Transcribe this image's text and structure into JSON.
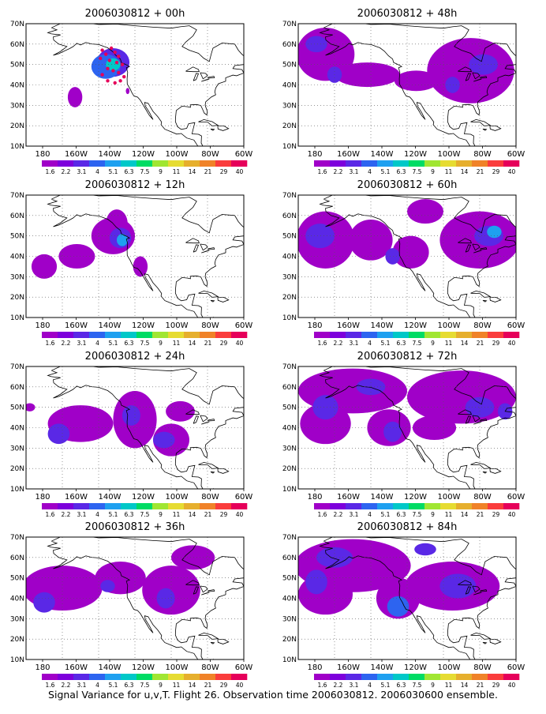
{
  "figure": {
    "caption": "Signal Variance for u,v,T. Flight 26. Observation time 2006030812. 2006030600 ensemble."
  },
  "shared": {
    "x_ticks": [
      "180",
      "160W",
      "140W",
      "120W",
      "100W",
      "80W",
      "60W"
    ],
    "y_ticks": [
      "10N",
      "20N",
      "30N",
      "40N",
      "50N",
      "60N",
      "70N"
    ],
    "lon_range": [
      -180,
      -60
    ],
    "lat_range": [
      10,
      70
    ],
    "colorbar_labels": [
      "1.6",
      "2.2",
      "3.1",
      "4",
      "5.1",
      "6.3",
      "7.5",
      "9",
      "11",
      "14",
      "21",
      "29",
      "40"
    ],
    "colorbar_colors": [
      "#a000c8",
      "#7d00dc",
      "#5a28e6",
      "#2d64f0",
      "#1ea0f0",
      "#00c8c8",
      "#00dc64",
      "#a0e632",
      "#e6dc32",
      "#e6af2d",
      "#f08228",
      "#fa3c3c",
      "#e6005a"
    ],
    "coastline_color": "#000000",
    "grid": "dotted"
  },
  "chart_data": [
    {
      "type": "heatmap",
      "title": "2006030812 + 00h",
      "regions": [
        {
          "lon": -132,
          "lat": 51,
          "rx": 9,
          "ry": 7,
          "level": 2
        },
        {
          "lon": -136,
          "lat": 49,
          "rx": 8,
          "ry": 6,
          "level": 3
        },
        {
          "lon": -132,
          "lat": 50,
          "rx": 4,
          "ry": 3,
          "level": 5
        },
        {
          "lon": -153,
          "lat": 34,
          "rx": 4,
          "ry": 5,
          "level": 0
        },
        {
          "lon": -124,
          "lat": 37,
          "rx": 1,
          "ry": 1.5,
          "level": 0
        }
      ],
      "obs_points": [
        [
          -138,
          57
        ],
        [
          -136,
          55
        ],
        [
          -133,
          58
        ],
        [
          -131,
          56
        ],
        [
          -129,
          54
        ],
        [
          -134,
          52
        ],
        [
          -130,
          51
        ],
        [
          -127,
          50
        ],
        [
          -135,
          48
        ],
        [
          -132,
          47
        ],
        [
          -129,
          46
        ],
        [
          -138,
          45
        ],
        [
          -135,
          42
        ],
        [
          -131,
          41
        ],
        [
          -128,
          42
        ],
        [
          -126,
          44
        ],
        [
          -139,
          53
        ]
      ],
      "obs_color": "#e6005a"
    },
    {
      "type": "heatmap",
      "title": "2006030812 + 48h",
      "regions": [
        {
          "lon": -165,
          "lat": 55,
          "rx": 16,
          "ry": 13,
          "level": 0
        },
        {
          "lon": -142,
          "lat": 45,
          "rx": 18,
          "ry": 6,
          "level": 0
        },
        {
          "lon": -115,
          "lat": 42,
          "rx": 12,
          "ry": 5,
          "level": 0
        },
        {
          "lon": -85,
          "lat": 47,
          "rx": 24,
          "ry": 16,
          "level": 0
        },
        {
          "lon": -170,
          "lat": 60,
          "rx": 6,
          "ry": 4,
          "level": 2
        },
        {
          "lon": -160,
          "lat": 45,
          "rx": 4,
          "ry": 4,
          "level": 2
        },
        {
          "lon": -78,
          "lat": 50,
          "rx": 8,
          "ry": 5,
          "level": 2
        },
        {
          "lon": -95,
          "lat": 40,
          "rx": 4,
          "ry": 4,
          "level": 2
        }
      ],
      "obs_points": [],
      "obs_color": "#e6005a"
    },
    {
      "type": "heatmap",
      "title": "2006030812 + 12h",
      "regions": [
        {
          "lon": -132,
          "lat": 50,
          "rx": 12,
          "ry": 9,
          "level": 0
        },
        {
          "lon": -130,
          "lat": 56,
          "rx": 6,
          "ry": 7,
          "level": 0
        },
        {
          "lon": -152,
          "lat": 40,
          "rx": 10,
          "ry": 6,
          "level": 0
        },
        {
          "lon": -170,
          "lat": 35,
          "rx": 7,
          "ry": 6,
          "level": 0
        },
        {
          "lon": -117,
          "lat": 35,
          "rx": 4,
          "ry": 5,
          "level": 0
        },
        {
          "lon": -128,
          "lat": 49,
          "rx": 6,
          "ry": 5,
          "level": 2
        },
        {
          "lon": -127,
          "lat": 48,
          "rx": 3,
          "ry": 3,
          "level": 4
        }
      ],
      "obs_points": [],
      "obs_color": "#e6005a"
    },
    {
      "type": "heatmap",
      "title": "2006030812 + 60h",
      "regions": [
        {
          "lon": -165,
          "lat": 48,
          "rx": 16,
          "ry": 14,
          "level": 0
        },
        {
          "lon": -140,
          "lat": 48,
          "rx": 12,
          "ry": 10,
          "level": 0
        },
        {
          "lon": -118,
          "lat": 42,
          "rx": 10,
          "ry": 8,
          "level": 0
        },
        {
          "lon": -110,
          "lat": 62,
          "rx": 10,
          "ry": 6,
          "level": 0
        },
        {
          "lon": -80,
          "lat": 48,
          "rx": 22,
          "ry": 14,
          "level": 0
        },
        {
          "lon": -168,
          "lat": 50,
          "rx": 8,
          "ry": 6,
          "level": 2
        },
        {
          "lon": -75,
          "lat": 50,
          "rx": 8,
          "ry": 5,
          "level": 2
        },
        {
          "lon": -72,
          "lat": 52,
          "rx": 4,
          "ry": 3,
          "level": 4
        },
        {
          "lon": -128,
          "lat": 40,
          "rx": 4,
          "ry": 4,
          "level": 2
        }
      ],
      "obs_points": [],
      "obs_color": "#e6005a"
    },
    {
      "type": "heatmap",
      "title": "2006030812 + 24h",
      "regions": [
        {
          "lon": -150,
          "lat": 42,
          "rx": 18,
          "ry": 9,
          "level": 0
        },
        {
          "lon": -120,
          "lat": 44,
          "rx": 12,
          "ry": 14,
          "level": 0
        },
        {
          "lon": -100,
          "lat": 34,
          "rx": 10,
          "ry": 8,
          "level": 0
        },
        {
          "lon": -95,
          "lat": 48,
          "rx": 8,
          "ry": 5,
          "level": 0
        },
        {
          "lon": -178,
          "lat": 50,
          "rx": 3,
          "ry": 2,
          "level": 0
        },
        {
          "lon": -162,
          "lat": 37,
          "rx": 6,
          "ry": 5,
          "level": 2
        },
        {
          "lon": -122,
          "lat": 46,
          "rx": 5,
          "ry": 5,
          "level": 2
        },
        {
          "lon": -104,
          "lat": 34,
          "rx": 6,
          "ry": 4,
          "level": 2
        }
      ],
      "obs_points": [],
      "obs_color": "#e6005a"
    },
    {
      "type": "heatmap",
      "title": "2006030812 + 72h",
      "regions": [
        {
          "lon": -150,
          "lat": 58,
          "rx": 30,
          "ry": 11,
          "level": 0
        },
        {
          "lon": -165,
          "lat": 42,
          "rx": 14,
          "ry": 10,
          "level": 0
        },
        {
          "lon": -130,
          "lat": 40,
          "rx": 12,
          "ry": 9,
          "level": 0
        },
        {
          "lon": -90,
          "lat": 55,
          "rx": 30,
          "ry": 13,
          "level": 0
        },
        {
          "lon": -105,
          "lat": 40,
          "rx": 12,
          "ry": 6,
          "level": 0
        },
        {
          "lon": -165,
          "lat": 50,
          "rx": 7,
          "ry": 6,
          "level": 2
        },
        {
          "lon": -140,
          "lat": 60,
          "rx": 8,
          "ry": 4,
          "level": 2
        },
        {
          "lon": -128,
          "lat": 38,
          "rx": 5,
          "ry": 5,
          "level": 2
        },
        {
          "lon": -80,
          "lat": 50,
          "rx": 8,
          "ry": 5,
          "level": 2
        },
        {
          "lon": -66,
          "lat": 48,
          "rx": 4,
          "ry": 4,
          "level": 2
        }
      ],
      "obs_points": [],
      "obs_color": "#e6005a"
    },
    {
      "type": "heatmap",
      "title": "2006030812 + 36h",
      "regions": [
        {
          "lon": -160,
          "lat": 45,
          "rx": 22,
          "ry": 11,
          "level": 0
        },
        {
          "lon": -128,
          "lat": 50,
          "rx": 14,
          "ry": 8,
          "level": 0
        },
        {
          "lon": -100,
          "lat": 44,
          "rx": 16,
          "ry": 12,
          "level": 0
        },
        {
          "lon": -88,
          "lat": 60,
          "rx": 12,
          "ry": 6,
          "level": 0
        },
        {
          "lon": -170,
          "lat": 38,
          "rx": 6,
          "ry": 5,
          "level": 2
        },
        {
          "lon": -103,
          "lat": 40,
          "rx": 5,
          "ry": 5,
          "level": 2
        },
        {
          "lon": -135,
          "lat": 46,
          "rx": 4,
          "ry": 3,
          "level": 2
        }
      ],
      "obs_points": [],
      "obs_color": "#e6005a"
    },
    {
      "type": "heatmap",
      "title": "2006030812 + 84h",
      "regions": [
        {
          "lon": -150,
          "lat": 56,
          "rx": 32,
          "ry": 13,
          "level": 0
        },
        {
          "lon": -165,
          "lat": 42,
          "rx": 15,
          "ry": 10,
          "level": 0
        },
        {
          "lon": -125,
          "lat": 40,
          "rx": 12,
          "ry": 10,
          "level": 0
        },
        {
          "lon": -95,
          "lat": 46,
          "rx": 26,
          "ry": 12,
          "level": 0
        },
        {
          "lon": -160,
          "lat": 60,
          "rx": 10,
          "ry": 5,
          "level": 2
        },
        {
          "lon": -170,
          "lat": 48,
          "rx": 6,
          "ry": 6,
          "level": 2
        },
        {
          "lon": -125,
          "lat": 36,
          "rx": 6,
          "ry": 5,
          "level": 3
        },
        {
          "lon": -92,
          "lat": 46,
          "rx": 10,
          "ry": 6,
          "level": 2
        },
        {
          "lon": -110,
          "lat": 64,
          "rx": 6,
          "ry": 3,
          "level": 2
        }
      ],
      "obs_points": [],
      "obs_color": "#e6005a"
    }
  ]
}
